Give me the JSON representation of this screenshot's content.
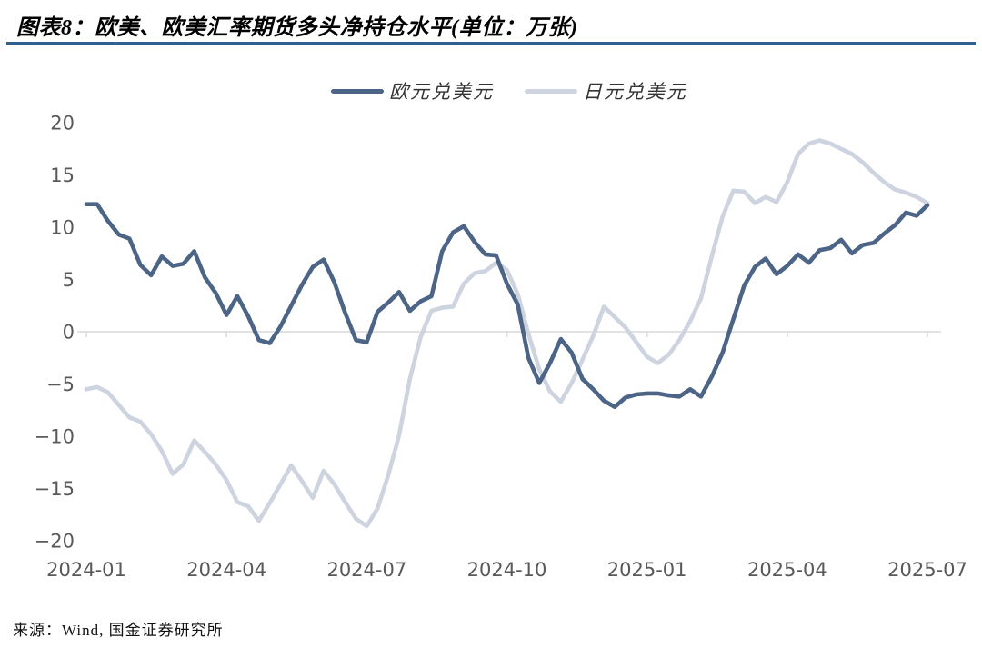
{
  "header": {
    "title": "图表8：欧美、欧美汇率期货多头净持仓水平(单位：万张)"
  },
  "footer": {
    "source": "来源：Wind, 国金证券研究所"
  },
  "colors": {
    "accent_rule": "#2e6191",
    "eur_line": "#4c6486",
    "jpy_line": "#cdd3df",
    "tick_text": "#595959",
    "gridline": "#d9d9d9"
  },
  "chart_data": {
    "type": "line",
    "title": "图表8：欧美、欧美汇率期货多头净持仓水平(单位：万张)",
    "unit": "万张",
    "x_frequency": "weekly",
    "x_tick_labels": [
      "2024-01",
      "2024-04",
      "2024-07",
      "2024-10",
      "2025-01",
      "2025-04",
      "2025-07"
    ],
    "x_tick_weeks": [
      0,
      13,
      26,
      39,
      52,
      65,
      78
    ],
    "y_ticks": [
      20,
      15,
      10,
      5,
      0,
      -5,
      -10,
      -15,
      -20
    ],
    "ylim": [
      -20,
      20
    ],
    "grid": "zero-line-only",
    "legend_position": "top-center",
    "series": [
      {
        "name": "欧元兑美元",
        "color": "#4c6486",
        "values": [
          12.2,
          12.2,
          10.6,
          9.3,
          8.9,
          6.4,
          5.4,
          7.2,
          6.3,
          6.5,
          7.7,
          5.2,
          3.7,
          1.6,
          3.4,
          1.5,
          -0.8,
          -1.1,
          0.5,
          2.5,
          4.5,
          6.2,
          6.9,
          4.7,
          1.8,
          -0.8,
          -1.0,
          1.9,
          2.8,
          3.8,
          2.0,
          2.9,
          3.4,
          7.7,
          9.5,
          10.1,
          8.6,
          7.4,
          7.3,
          4.6,
          2.6,
          -2.5,
          -4.9,
          -3.0,
          -0.7,
          -2.0,
          -4.5,
          -5.5,
          -6.6,
          -7.2,
          -6.3,
          -6.0,
          -5.9,
          -5.9,
          -6.1,
          -6.2,
          -5.5,
          -6.2,
          -4.3,
          -2.0,
          1.2,
          4.4,
          6.2,
          7.0,
          5.5,
          6.3,
          7.4,
          6.6,
          7.8,
          8.0,
          8.8,
          7.5,
          8.3,
          8.5,
          9.4,
          10.2,
          11.4,
          11.1,
          12.1
        ]
      },
      {
        "name": "日元兑美元",
        "color": "#cdd3df",
        "values": [
          -5.5,
          -5.3,
          -5.8,
          -7.0,
          -8.2,
          -8.6,
          -9.8,
          -11.4,
          -13.6,
          -12.7,
          -10.4,
          -11.5,
          -12.7,
          -14.2,
          -16.3,
          -16.7,
          -18.1,
          -16.4,
          -14.6,
          -12.8,
          -14.3,
          -15.9,
          -13.3,
          -14.6,
          -16.3,
          -17.9,
          -18.6,
          -16.9,
          -13.7,
          -9.9,
          -4.5,
          -0.5,
          2.0,
          2.3,
          2.4,
          4.6,
          5.6,
          5.8,
          6.6,
          5.9,
          3.6,
          -0.2,
          -3.6,
          -5.7,
          -6.7,
          -4.9,
          -2.7,
          -0.4,
          2.4,
          1.4,
          0.4,
          -1.0,
          -2.4,
          -3.0,
          -2.2,
          -0.8,
          1.0,
          3.2,
          7.2,
          11.0,
          13.5,
          13.4,
          12.3,
          12.9,
          12.4,
          14.3,
          17.0,
          18.0,
          18.3,
          18.0,
          17.5,
          17.0,
          16.2,
          15.2,
          14.3,
          13.6,
          13.3,
          12.9,
          12.3
        ]
      }
    ]
  }
}
